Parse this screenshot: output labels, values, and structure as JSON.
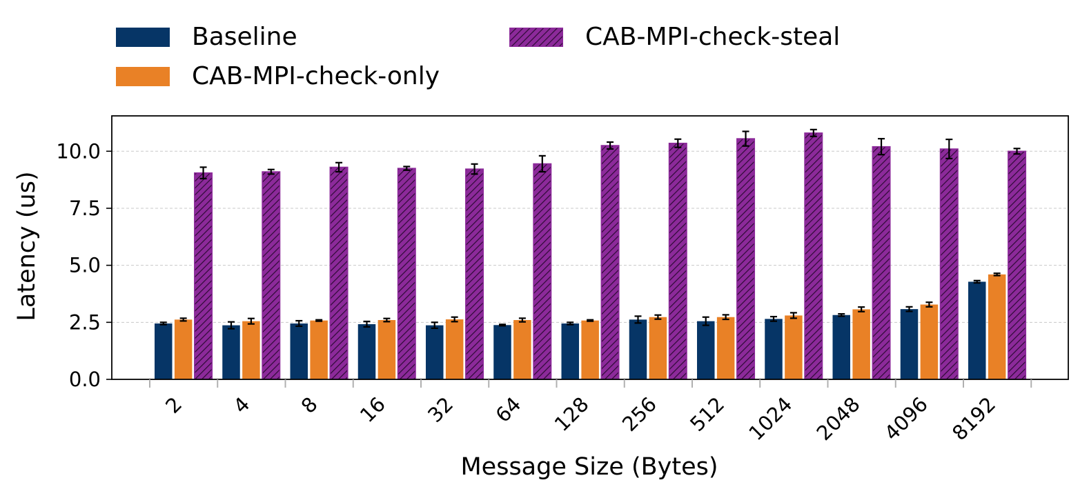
{
  "chart_data": {
    "type": "bar",
    "title": "",
    "xlabel": "Message Size (Bytes)",
    "ylabel": "Latency (us)",
    "ylim": [
      0,
      11.55
    ],
    "yticks": [
      "0.0",
      "2.5",
      "5.0",
      "7.5",
      "10.0"
    ],
    "ytick_values": [
      0,
      2.5,
      5.0,
      7.5,
      10.0
    ],
    "grid": "horizontal dashed",
    "legend_position": "top-left, above plot, two columns",
    "categories": [
      "2",
      "4",
      "8",
      "16",
      "32",
      "64",
      "128",
      "256",
      "512",
      "1024",
      "2048",
      "4096",
      "8192"
    ],
    "series": [
      {
        "name": "Baseline",
        "color": "#063566",
        "hatch": false,
        "values": [
          2.45,
          2.37,
          2.45,
          2.42,
          2.37,
          2.38,
          2.45,
          2.62,
          2.55,
          2.65,
          2.82,
          3.08,
          4.28
        ],
        "errors": [
          0.05,
          0.15,
          0.12,
          0.12,
          0.13,
          0.03,
          0.05,
          0.15,
          0.18,
          0.1,
          0.05,
          0.1,
          0.05
        ]
      },
      {
        "name": "CAB-MPI-check-only",
        "color": "#e98126",
        "hatch": false,
        "values": [
          2.62,
          2.55,
          2.58,
          2.6,
          2.63,
          2.6,
          2.58,
          2.73,
          2.73,
          2.8,
          3.07,
          3.28,
          4.6
        ],
        "errors": [
          0.06,
          0.12,
          0.03,
          0.07,
          0.1,
          0.08,
          0.03,
          0.09,
          0.1,
          0.12,
          0.1,
          0.1,
          0.05
        ]
      },
      {
        "name": "CAB-MPI-check-steal",
        "color": "#8c2a9a",
        "hatch": true,
        "values": [
          9.05,
          9.1,
          9.3,
          9.25,
          9.22,
          9.45,
          10.25,
          10.35,
          10.55,
          10.8,
          10.2,
          10.1,
          10.0
        ],
        "errors": [
          0.25,
          0.1,
          0.2,
          0.08,
          0.22,
          0.35,
          0.15,
          0.18,
          0.32,
          0.15,
          0.35,
          0.42,
          0.12
        ]
      }
    ]
  }
}
